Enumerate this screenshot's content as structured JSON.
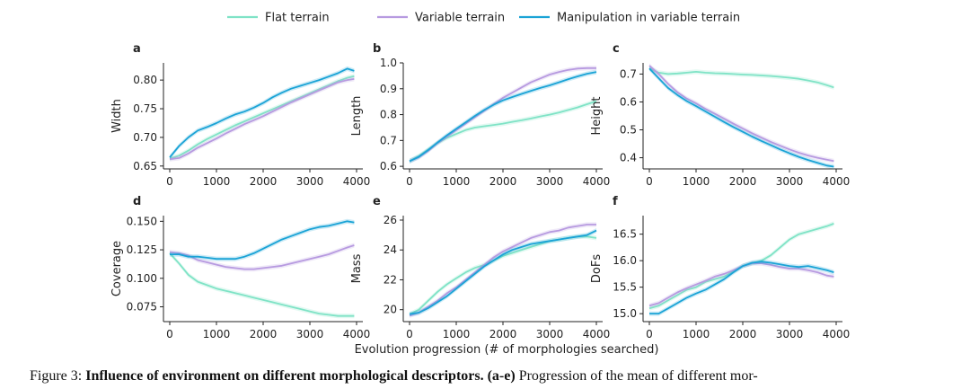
{
  "legend": [
    {
      "name": "Flat terrain",
      "color": "#7fe3c6"
    },
    {
      "name": "Variable terrain",
      "color": "#b79ae0"
    },
    {
      "name": "Manipulation in variable terrain",
      "color": "#1aa3d6"
    }
  ],
  "xlabel": "Evolution progression (# of morphologies searched)",
  "caption": {
    "prefix": "Figure 3: ",
    "bold": "Influence of environment on different morphological descriptors.",
    "bold2": "(a-e)",
    "rest": " Progression of the mean of different mor-"
  },
  "chart_data": [
    {
      "type": "line",
      "panel": "a",
      "ylabel": "Width",
      "xlim": [
        0,
        4000
      ],
      "ylim": [
        0.645,
        0.83
      ],
      "xticks": [
        0,
        1000,
        2000,
        3000,
        4000
      ],
      "yticks": [
        0.65,
        0.7,
        0.75,
        0.8
      ],
      "ytick_labels": [
        "0.65",
        "0.70",
        "0.75",
        "0.80"
      ],
      "x": [
        0,
        200,
        400,
        600,
        800,
        1000,
        1200,
        1400,
        1600,
        1800,
        2000,
        2200,
        2400,
        2600,
        2800,
        3000,
        3200,
        3400,
        3600,
        3800,
        3950
      ],
      "series": [
        {
          "name": "Flat terrain",
          "values": [
            0.663,
            0.668,
            0.677,
            0.688,
            0.697,
            0.705,
            0.713,
            0.721,
            0.728,
            0.735,
            0.742,
            0.749,
            0.756,
            0.763,
            0.77,
            0.777,
            0.784,
            0.791,
            0.798,
            0.804,
            0.807
          ]
        },
        {
          "name": "Variable terrain",
          "values": [
            0.662,
            0.664,
            0.672,
            0.682,
            0.69,
            0.698,
            0.707,
            0.715,
            0.723,
            0.73,
            0.737,
            0.745,
            0.753,
            0.761,
            0.768,
            0.775,
            0.782,
            0.789,
            0.796,
            0.8,
            0.802
          ]
        },
        {
          "name": "Manipulation in variable terrain",
          "values": [
            0.665,
            0.685,
            0.7,
            0.712,
            0.718,
            0.725,
            0.733,
            0.74,
            0.745,
            0.752,
            0.76,
            0.77,
            0.778,
            0.785,
            0.79,
            0.795,
            0.8,
            0.806,
            0.812,
            0.82,
            0.816
          ]
        }
      ]
    },
    {
      "type": "line",
      "panel": "b",
      "ylabel": "Length",
      "xlim": [
        0,
        4000
      ],
      "ylim": [
        0.59,
        1.0
      ],
      "xticks": [
        0,
        1000,
        2000,
        3000,
        4000
      ],
      "yticks": [
        0.6,
        0.7,
        0.8,
        0.9,
        1.0
      ],
      "ytick_labels": [
        "0.6",
        "0.7",
        "0.8",
        "0.9",
        "1.0"
      ],
      "x": [
        0,
        200,
        400,
        600,
        800,
        1000,
        1200,
        1400,
        1600,
        1800,
        2000,
        2200,
        2400,
        2600,
        2800,
        3000,
        3200,
        3400,
        3600,
        3800,
        4000
      ],
      "series": [
        {
          "name": "Flat terrain",
          "values": [
            0.62,
            0.64,
            0.665,
            0.69,
            0.71,
            0.725,
            0.74,
            0.75,
            0.755,
            0.76,
            0.765,
            0.772,
            0.778,
            0.785,
            0.793,
            0.8,
            0.808,
            0.818,
            0.828,
            0.84,
            0.852
          ]
        },
        {
          "name": "Variable terrain",
          "values": [
            0.62,
            0.635,
            0.66,
            0.69,
            0.715,
            0.74,
            0.765,
            0.79,
            0.815,
            0.84,
            0.865,
            0.885,
            0.905,
            0.925,
            0.94,
            0.955,
            0.965,
            0.973,
            0.978,
            0.98,
            0.98
          ]
        },
        {
          "name": "Manipulation in variable terrain",
          "values": [
            0.62,
            0.637,
            0.663,
            0.692,
            0.72,
            0.745,
            0.77,
            0.795,
            0.818,
            0.838,
            0.855,
            0.868,
            0.88,
            0.892,
            0.903,
            0.913,
            0.925,
            0.937,
            0.948,
            0.958,
            0.965
          ]
        }
      ]
    },
    {
      "type": "line",
      "panel": "c",
      "ylabel": "Height",
      "xlim": [
        0,
        4000
      ],
      "ylim": [
        0.36,
        0.74
      ],
      "xticks": [
        0,
        1000,
        2000,
        3000,
        4000
      ],
      "yticks": [
        0.4,
        0.5,
        0.6,
        0.7
      ],
      "ytick_labels": [
        "0.4",
        "0.5",
        "0.6",
        "0.7"
      ],
      "x": [
        0,
        200,
        400,
        600,
        800,
        1000,
        1200,
        1400,
        1600,
        1800,
        2000,
        2200,
        2400,
        2600,
        2800,
        3000,
        3200,
        3400,
        3600,
        3800,
        3950
      ],
      "series": [
        {
          "name": "Flat terrain",
          "values": [
            0.72,
            0.705,
            0.7,
            0.702,
            0.705,
            0.708,
            0.705,
            0.703,
            0.702,
            0.7,
            0.698,
            0.697,
            0.695,
            0.693,
            0.69,
            0.687,
            0.683,
            0.677,
            0.67,
            0.66,
            0.652
          ]
        },
        {
          "name": "Variable terrain",
          "values": [
            0.73,
            0.7,
            0.665,
            0.635,
            0.612,
            0.595,
            0.575,
            0.558,
            0.54,
            0.522,
            0.505,
            0.488,
            0.472,
            0.457,
            0.443,
            0.43,
            0.418,
            0.408,
            0.4,
            0.393,
            0.388
          ]
        },
        {
          "name": "Manipulation in variable terrain",
          "values": [
            0.72,
            0.685,
            0.65,
            0.625,
            0.603,
            0.585,
            0.566,
            0.547,
            0.528,
            0.51,
            0.493,
            0.476,
            0.46,
            0.445,
            0.43,
            0.416,
            0.403,
            0.392,
            0.382,
            0.372,
            0.368
          ]
        }
      ]
    },
    {
      "type": "line",
      "panel": "d",
      "ylabel": "Coverage",
      "xlim": [
        0,
        4000
      ],
      "ylim": [
        0.062,
        0.155
      ],
      "xticks": [
        0,
        1000,
        2000,
        3000,
        4000
      ],
      "yticks": [
        0.075,
        0.1,
        0.125,
        0.15
      ],
      "ytick_labels": [
        "0.075",
        "0.100",
        "0.125",
        "0.150"
      ],
      "x": [
        0,
        200,
        400,
        600,
        800,
        1000,
        1200,
        1400,
        1600,
        1800,
        2000,
        2200,
        2400,
        2600,
        2800,
        3000,
        3200,
        3400,
        3600,
        3800,
        3950
      ],
      "series": [
        {
          "name": "Flat terrain",
          "values": [
            0.122,
            0.113,
            0.103,
            0.097,
            0.094,
            0.091,
            0.089,
            0.087,
            0.085,
            0.083,
            0.081,
            0.079,
            0.077,
            0.075,
            0.073,
            0.071,
            0.069,
            0.068,
            0.067,
            0.067,
            0.067
          ]
        },
        {
          "name": "Variable terrain",
          "values": [
            0.123,
            0.122,
            0.12,
            0.116,
            0.114,
            0.112,
            0.11,
            0.109,
            0.108,
            0.108,
            0.109,
            0.11,
            0.111,
            0.113,
            0.115,
            0.117,
            0.119,
            0.121,
            0.124,
            0.127,
            0.129
          ]
        },
        {
          "name": "Manipulation in variable terrain",
          "values": [
            0.121,
            0.121,
            0.119,
            0.119,
            0.118,
            0.117,
            0.117,
            0.117,
            0.119,
            0.122,
            0.126,
            0.13,
            0.134,
            0.137,
            0.14,
            0.143,
            0.145,
            0.146,
            0.148,
            0.15,
            0.149
          ]
        }
      ]
    },
    {
      "type": "line",
      "panel": "e",
      "ylabel": "Mass",
      "xlim": [
        0,
        4000
      ],
      "ylim": [
        19.2,
        26.3
      ],
      "xticks": [
        0,
        1000,
        2000,
        3000,
        4000
      ],
      "yticks": [
        20,
        22,
        24,
        26
      ],
      "ytick_labels": [
        "20",
        "22",
        "24",
        "26"
      ],
      "x": [
        0,
        200,
        400,
        600,
        800,
        1000,
        1200,
        1400,
        1600,
        1800,
        2000,
        2200,
        2400,
        2600,
        2800,
        3000,
        3200,
        3400,
        3600,
        3800,
        4000
      ],
      "series": [
        {
          "name": "Flat terrain",
          "values": [
            19.7,
            20.0,
            20.6,
            21.2,
            21.7,
            22.1,
            22.5,
            22.8,
            23.0,
            23.3,
            23.6,
            23.8,
            24.0,
            24.2,
            24.4,
            24.6,
            24.7,
            24.8,
            24.9,
            24.9,
            24.8
          ]
        },
        {
          "name": "Variable terrain",
          "values": [
            19.6,
            19.8,
            20.2,
            20.6,
            21.1,
            21.5,
            22.0,
            22.5,
            23.0,
            23.5,
            23.9,
            24.2,
            24.5,
            24.8,
            25.0,
            25.2,
            25.3,
            25.5,
            25.6,
            25.7,
            25.7
          ]
        },
        {
          "name": "Manipulation in variable terrain",
          "values": [
            19.7,
            19.8,
            20.1,
            20.5,
            20.9,
            21.4,
            21.9,
            22.4,
            22.9,
            23.3,
            23.7,
            24.0,
            24.2,
            24.4,
            24.5,
            24.6,
            24.7,
            24.8,
            24.9,
            25.0,
            25.3
          ]
        }
      ]
    },
    {
      "type": "line",
      "panel": "f",
      "ylabel": "DoFs",
      "xlim": [
        0,
        4000
      ],
      "ylim": [
        14.85,
        16.85
      ],
      "xticks": [
        0,
        1000,
        2000,
        3000,
        4000
      ],
      "yticks": [
        15.0,
        15.5,
        16.0,
        16.5
      ],
      "ytick_labels": [
        "15.0",
        "15.5",
        "16.0",
        "16.5"
      ],
      "x": [
        0,
        200,
        400,
        600,
        800,
        1000,
        1200,
        1400,
        1600,
        1800,
        2000,
        2200,
        2400,
        2600,
        2800,
        3000,
        3200,
        3400,
        3600,
        3800,
        3950
      ],
      "series": [
        {
          "name": "Flat terrain",
          "values": [
            15.1,
            15.15,
            15.25,
            15.35,
            15.45,
            15.5,
            15.6,
            15.65,
            15.7,
            15.8,
            15.9,
            15.95,
            16.0,
            16.1,
            16.25,
            16.4,
            16.5,
            16.55,
            16.6,
            16.65,
            16.7
          ]
        },
        {
          "name": "Variable terrain",
          "values": [
            15.15,
            15.2,
            15.3,
            15.4,
            15.48,
            15.55,
            15.62,
            15.7,
            15.75,
            15.82,
            15.9,
            15.95,
            15.95,
            15.92,
            15.88,
            15.85,
            15.85,
            15.82,
            15.78,
            15.72,
            15.7
          ]
        },
        {
          "name": "Manipulation in variable terrain",
          "values": [
            15.0,
            15.0,
            15.1,
            15.2,
            15.3,
            15.38,
            15.45,
            15.55,
            15.65,
            15.78,
            15.9,
            15.96,
            15.98,
            15.96,
            15.93,
            15.9,
            15.88,
            15.9,
            15.86,
            15.82,
            15.78
          ]
        }
      ]
    }
  ]
}
